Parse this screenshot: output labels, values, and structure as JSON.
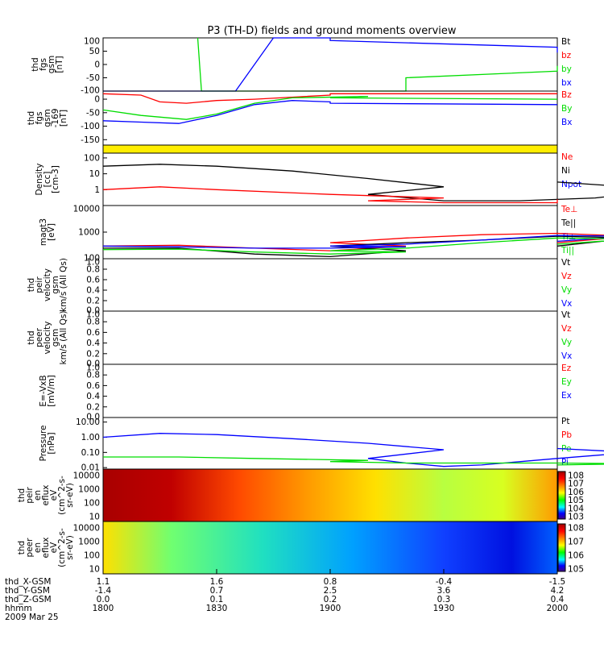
{
  "title": "P3 (TH-D) fields and ground moments overview",
  "colors": {
    "black": "#000000",
    "red": "#ff0000",
    "green": "#00dd00",
    "blue": "#0000ff",
    "yellow": "#ffee00"
  },
  "chart_data": [
    {
      "type": "line",
      "ylabel_lines": [
        "thd",
        "fgs",
        "gsm",
        "[nT]"
      ],
      "ylim": [
        -100,
        100
      ],
      "yticks": [
        "100",
        "50",
        "0",
        "-50",
        "-100"
      ],
      "legend": [
        "Bt",
        "bz",
        "by",
        "bx"
      ],
      "legend_colors": [
        "#000000",
        "#ff0000",
        "#00dd00",
        "#0000ff"
      ],
      "series": [
        {
          "name": "by",
          "color": "#00dd00",
          "x": [
            1825,
            1826,
            1840,
            1880,
            1920,
            1960,
            2000
          ],
          "y": [
            100,
            -100,
            -100,
            -100,
            -50,
            -25,
            -5
          ]
        },
        {
          "name": "bx",
          "color": "#0000ff",
          "x": [
            1800,
            1835,
            1845,
            1860,
            1900,
            1960,
            2000
          ],
          "y": [
            -100,
            -100,
            100,
            100,
            90,
            65,
            45
          ]
        }
      ]
    },
    {
      "type": "line",
      "ylabel_lines": [
        "thd",
        "fgs",
        "gsm",
        "-169",
        "[nT]"
      ],
      "ylim": [
        -170,
        30
      ],
      "yticks": [
        "0",
        "-50",
        "-100",
        "-150"
      ],
      "legend": [
        "Bz",
        "By",
        "Bx"
      ],
      "legend_colors": [
        "#ff0000",
        "#00dd00",
        "#0000ff"
      ],
      "series": [
        {
          "name": "Bz",
          "color": "#ff0000",
          "x": [
            1800,
            1810,
            1815,
            1822,
            1830,
            1840,
            1860,
            1900,
            2000
          ],
          "y": [
            20,
            15,
            -10,
            -15,
            -5,
            0,
            15,
            20,
            20
          ]
        },
        {
          "name": "By",
          "color": "#00dd00",
          "x": [
            1800,
            1810,
            1822,
            1830,
            1840,
            1850,
            1870,
            1900,
            2000
          ],
          "y": [
            -40,
            -60,
            -75,
            -55,
            -15,
            5,
            10,
            5,
            0
          ]
        },
        {
          "name": "Bx",
          "color": "#0000ff",
          "x": [
            1800,
            1810,
            1820,
            1830,
            1840,
            1850,
            1860,
            1900,
            2000
          ],
          "y": [
            -80,
            -85,
            -90,
            -60,
            -20,
            -5,
            -10,
            -15,
            -20
          ]
        }
      ]
    },
    {
      "type": "line",
      "ylabel_lines": [
        "Density",
        "[cc]",
        "[cm-3]"
      ],
      "log": true,
      "ylim": [
        0.1,
        200
      ],
      "yticks": [
        "100",
        "10",
        "1"
      ],
      "legend": [
        "Ne",
        "Ni",
        "Npot"
      ],
      "legend_colors": [
        "#ff0000",
        "#000000",
        "#0000ff"
      ],
      "series": [
        {
          "name": "Ni",
          "color": "#000000",
          "x": [
            1800,
            1815,
            1830,
            1850,
            1870,
            1890,
            1910,
            1930,
            1950,
            1970,
            1990,
            2000
          ],
          "y": [
            30,
            40,
            30,
            15,
            5,
            1.5,
            0.5,
            0.2,
            0.2,
            0.3,
            1,
            3
          ]
        },
        {
          "name": "Ne",
          "color": "#ff0000",
          "x": [
            1800,
            1815,
            1830,
            1860,
            1890,
            1910,
            1930,
            1960,
            2000
          ],
          "y": [
            1,
            1.5,
            1,
            0.5,
            0.3,
            0.2,
            0.15,
            0.15,
            0.25
          ]
        }
      ]
    },
    {
      "type": "line",
      "ylabel_lines": [
        "magt3",
        "[eV]"
      ],
      "log": true,
      "ylim": [
        100,
        10000
      ],
      "yticks": [
        "10000",
        "1000",
        "100"
      ],
      "legend": [
        "Te⊥",
        "Te||",
        "Ti⊥",
        "Ti||"
      ],
      "legend_colors": [
        "#ff0000",
        "#000000",
        "#0000ff",
        "#00dd00"
      ],
      "series": [
        {
          "name": "Te⊥",
          "color": "#ff0000",
          "x": [
            1800,
            1820,
            1840,
            1860,
            1880,
            1900,
            1920,
            1940,
            1960,
            1980,
            2000
          ],
          "y": [
            300,
            320,
            250,
            200,
            300,
            400,
            600,
            800,
            900,
            700,
            400
          ]
        },
        {
          "name": "Te||",
          "color": "#000000",
          "x": [
            1800,
            1820,
            1840,
            1860,
            1880,
            1900,
            1920,
            1940,
            1960,
            1980,
            2000
          ],
          "y": [
            250,
            250,
            150,
            120,
            200,
            300,
            400,
            500,
            700,
            600,
            300
          ]
        },
        {
          "name": "Ti⊥",
          "color": "#0000ff",
          "x": [
            1800,
            1820,
            1840,
            1860,
            1880,
            1900,
            1920,
            1940,
            1960,
            1980,
            2000
          ],
          "y": [
            300,
            280,
            250,
            250,
            280,
            300,
            350,
            500,
            750,
            700,
            450
          ]
        },
        {
          "name": "Ti||",
          "color": "#00dd00",
          "x": [
            1800,
            1820,
            1840,
            1860,
            1880,
            1900,
            1920,
            1940,
            1960,
            1980,
            2000
          ],
          "y": [
            220,
            230,
            180,
            150,
            180,
            200,
            250,
            400,
            600,
            550,
            350
          ]
        }
      ]
    },
    {
      "type": "line",
      "ylabel_lines": [
        "thd",
        "peir",
        "velocity",
        "gsm",
        "km/s (All Qs)"
      ],
      "ylim": [
        0,
        1
      ],
      "yticks": [
        "1.0",
        "0.8",
        "0.6",
        "0.4",
        "0.2",
        "0.0"
      ],
      "legend": [
        "Vt",
        "Vz",
        "Vy",
        "Vx"
      ],
      "legend_colors": [
        "#000000",
        "#ff0000",
        "#00dd00",
        "#0000ff"
      ],
      "series": []
    },
    {
      "type": "line",
      "ylabel_lines": [
        "thd",
        "peer",
        "velocity",
        "gsm",
        "km/s (All Qs)"
      ],
      "ylim": [
        0,
        1
      ],
      "yticks": [
        "1.0",
        "0.8",
        "0.6",
        "0.4",
        "0.2",
        "0.0"
      ],
      "legend": [
        "Vt",
        "Vz",
        "Vy",
        "Vx"
      ],
      "legend_colors": [
        "#000000",
        "#ff0000",
        "#00dd00",
        "#0000ff"
      ],
      "series": []
    },
    {
      "type": "line",
      "ylabel_lines": [
        "E=-VxB",
        "[mV/m]"
      ],
      "ylim": [
        0,
        1
      ],
      "yticks": [
        "1.0",
        "0.8",
        "0.6",
        "0.4",
        "0.2",
        "0.0"
      ],
      "legend": [
        "Ez",
        "Ey",
        "Ex"
      ],
      "legend_colors": [
        "#ff0000",
        "#00dd00",
        "#0000ff"
      ],
      "series": []
    },
    {
      "type": "line",
      "ylabel_lines": [
        "Pressure",
        "[nPa]"
      ],
      "log": true,
      "ylim": [
        0.008,
        20
      ],
      "yticks": [
        "10.00",
        "1.00",
        "0.10",
        "0.01"
      ],
      "legend": [
        "Pt",
        "Pb",
        "Pe",
        "Pi"
      ],
      "legend_colors": [
        "#000000",
        "#ff0000",
        "#00dd00",
        "#0000ff"
      ],
      "series": [
        {
          "name": "Pi",
          "color": "#0000ff",
          "x": [
            1800,
            1815,
            1830,
            1850,
            1870,
            1890,
            1910,
            1920,
            1930,
            1940,
            1960,
            1980,
            2000
          ],
          "y": [
            1,
            1.8,
            1.5,
            0.8,
            0.4,
            0.15,
            0.04,
            0.02,
            0.012,
            0.015,
            0.04,
            0.1,
            0.18
          ]
        },
        {
          "name": "Pe",
          "color": "#00dd00",
          "x": [
            1800,
            1820,
            1840,
            1870,
            1900,
            1920,
            1940,
            1960,
            1980,
            2000
          ],
          "y": [
            0.05,
            0.05,
            0.04,
            0.03,
            0.025,
            0.02,
            0.02,
            0.02,
            0.018,
            0.015
          ]
        }
      ]
    }
  ],
  "spectrograms": [
    {
      "ylabel_lines": [
        "thd",
        "peir",
        "en",
        "eflux",
        "eV",
        "(cm^2-s-",
        "sr-eV)"
      ],
      "yticks": [
        "10000",
        "1000",
        "100",
        "10"
      ],
      "colorbar_ticks": [
        "10^8",
        "10^7",
        "10^6",
        "10^5",
        "10^4",
        "10^3"
      ]
    },
    {
      "ylabel_lines": [
        "thd",
        "peer",
        "en",
        "eflux",
        "eV",
        "(cm^2-s-",
        "sr-eV)"
      ],
      "yticks": [
        "10000",
        "1000",
        "100",
        "10"
      ],
      "colorbar_ticks": [
        "10^8",
        "10^7",
        "10^6",
        "10^5"
      ]
    }
  ],
  "xaxis": {
    "ticks": [
      1800,
      1830,
      1900,
      1930,
      2000
    ],
    "rows": [
      {
        "label": "thd_X-GSM",
        "values": [
          "1.1",
          "1.6",
          "0.8",
          "-0.4",
          "-1.5"
        ]
      },
      {
        "label": "thd_Y-GSM",
        "values": [
          "-1.4",
          "0.7",
          "2.5",
          "3.6",
          "4.2"
        ]
      },
      {
        "label": "thd_Z-GSM",
        "values": [
          "0.0",
          "0.1",
          "0.2",
          "0.3",
          "0.4"
        ]
      },
      {
        "label": "hhmm",
        "values": [
          "1800",
          "1830",
          "1900",
          "1930",
          "2000"
        ]
      }
    ],
    "date": "2009 Mar 25"
  }
}
